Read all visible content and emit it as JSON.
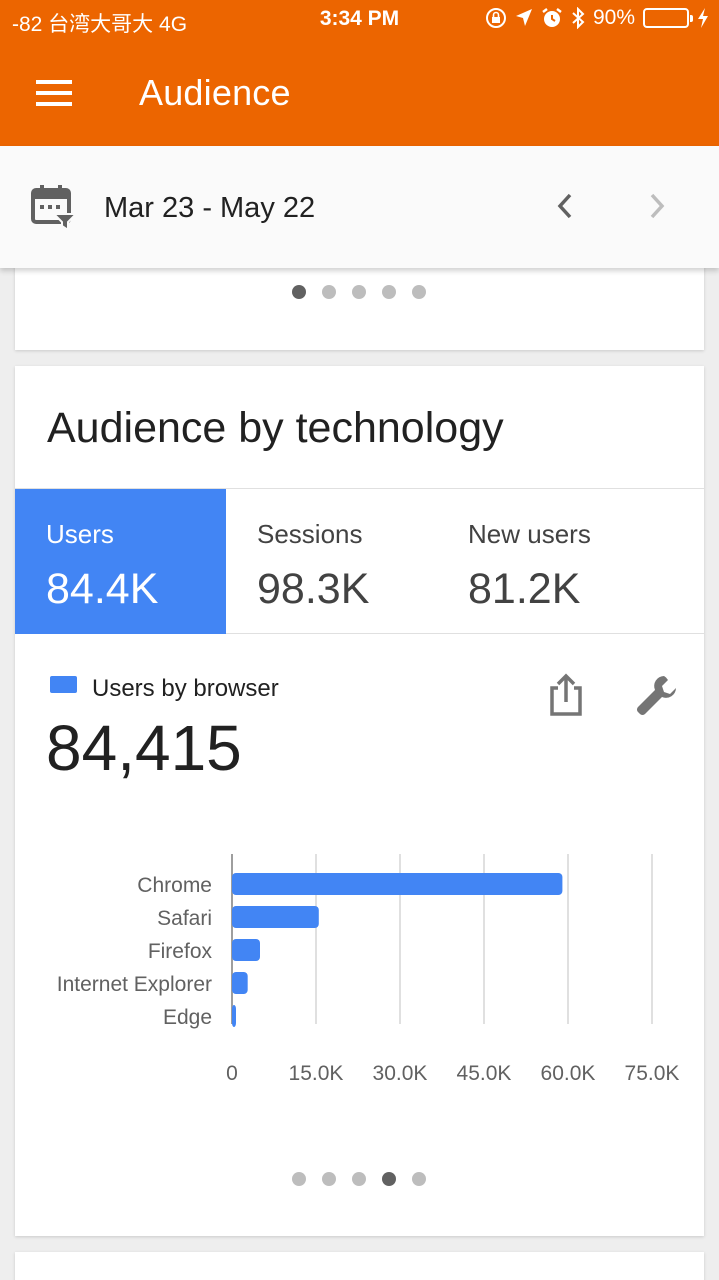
{
  "status_bar": {
    "carrier": "-82 台湾大哥大  4G",
    "time": "3:34 PM",
    "battery": "90%",
    "battery_level": 0.9
  },
  "app_bar": {
    "title": "Audience",
    "menu_icon": "hamburger-menu-icon"
  },
  "date_bar": {
    "range": "Mar 23 - May 22",
    "calendar_icon": "calendar-filter-icon",
    "prev_icon": "chevron-left-icon",
    "next_icon": "chevron-right-icon"
  },
  "top_card": {
    "page_dots": 5,
    "active_dot": 0
  },
  "tech_card": {
    "title": "Audience by technology",
    "metrics": [
      {
        "label": "Users",
        "value": "84.4K",
        "active": true
      },
      {
        "label": "Sessions",
        "value": "98.3K",
        "active": false
      },
      {
        "label": "New users",
        "value": "81.2K",
        "active": false
      }
    ],
    "legend_label": "Users by browser",
    "total": "84,415",
    "share_icon": "share-icon",
    "settings_icon": "wrench-icon",
    "page_dots": 5,
    "active_dot": 3
  },
  "colors": {
    "app_bar": "#ec6500",
    "accent": "#4285f4"
  },
  "chart_data": {
    "type": "bar",
    "orientation": "horizontal",
    "categories": [
      "Chrome",
      "Safari",
      "Firefox",
      "Internet Explorer",
      "Edge"
    ],
    "series": [
      {
        "values": [
          59000,
          15500,
          5000,
          2800,
          500
        ]
      }
    ],
    "x_ticks": [
      "0",
      "15.0K",
      "30.0K",
      "45.0K",
      "60.0K",
      "75.0K"
    ],
    "xlim": [
      0,
      75000
    ],
    "grid": true
  }
}
